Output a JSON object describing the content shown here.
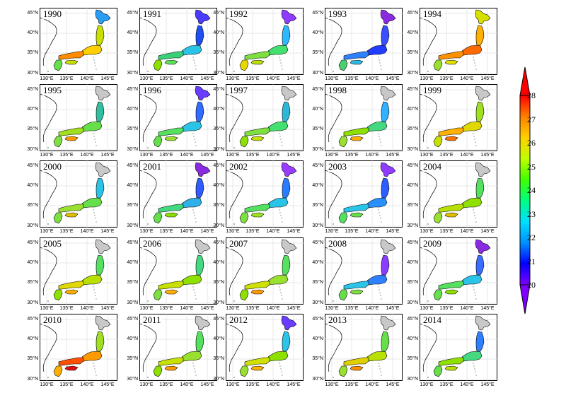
{
  "panels": [
    {
      "year": "1990",
      "colors": [
        "#2a9df4",
        "#c9e000",
        "#ffd000",
        "#ff8c00",
        "#c9e000",
        "#66e04a"
      ]
    },
    {
      "year": "1991",
      "colors": [
        "#4a3cff",
        "#1f4ff2",
        "#29c4e8",
        "#3ad07a",
        "#5fe05a",
        "#8ee000"
      ]
    },
    {
      "year": "1992",
      "colors": [
        "#8f3cff",
        "#2eb8ff",
        "#44e070",
        "#7ee040",
        "#b8e000",
        "#e6d800"
      ]
    },
    {
      "year": "1993",
      "colors": [
        "#8a2be2",
        "#3a50ff",
        "#1f3cff",
        "#2f80ff",
        "#2fb8e0",
        "#4ad070"
      ]
    },
    {
      "year": "1994",
      "colors": [
        "#d8e000",
        "#ffb000",
        "#ff6a00",
        "#ff9000",
        "#e0e000",
        "#9ae030"
      ]
    },
    {
      "year": "1995",
      "colors": [
        "#c8c8c8",
        "#30c0a0",
        "#66e04a",
        "#a0e020",
        "#ff9a00",
        "#7ee040"
      ]
    },
    {
      "year": "1996",
      "colors": [
        "#6a3cff",
        "#2f6cff",
        "#29c4e8",
        "#55e060",
        "#9ae030",
        "#66e04a"
      ]
    },
    {
      "year": "1997",
      "colors": [
        "#c8c8c8",
        "#2eb8d8",
        "#44e070",
        "#7ee040",
        "#c8e000",
        "#8ee000"
      ]
    },
    {
      "year": "1998",
      "colors": [
        "#c8c8c8",
        "#33b0ff",
        "#44d880",
        "#8ee000",
        "#ffb000",
        "#9ae030"
      ]
    },
    {
      "year": "1999",
      "colors": [
        "#c8c8c8",
        "#a0e020",
        "#e0d800",
        "#ffb000",
        "#ff7000",
        "#c8e000"
      ]
    },
    {
      "year": "2000",
      "colors": [
        "#c8c8c8",
        "#29c4e8",
        "#66e04a",
        "#9ae030",
        "#e0c000",
        "#7ee040"
      ]
    },
    {
      "year": "2001",
      "colors": [
        "#8a2be2",
        "#2f5cff",
        "#2fb0e8",
        "#44d880",
        "#8ee000",
        "#66e04a"
      ]
    },
    {
      "year": "2002",
      "colors": [
        "#9a3cff",
        "#2a7cff",
        "#29c4e8",
        "#55e060",
        "#a0e020",
        "#7ee040"
      ]
    },
    {
      "year": "2003",
      "colors": [
        "#8f3cff",
        "#2f5cff",
        "#2a90ff",
        "#29c4e8",
        "#66e04a",
        "#55e060"
      ]
    },
    {
      "year": "2004",
      "colors": [
        "#c8c8c8",
        "#55e060",
        "#8ee000",
        "#b8e000",
        "#e0c000",
        "#9ae030"
      ]
    },
    {
      "year": "2005",
      "colors": [
        "#c8c8c8",
        "#55e060",
        "#b8e000",
        "#e0d800",
        "#ffb000",
        "#8ee000"
      ]
    },
    {
      "year": "2006",
      "colors": [
        "#c8c8c8",
        "#44d880",
        "#8ee000",
        "#c8e000",
        "#ffb000",
        "#7ee040"
      ]
    },
    {
      "year": "2007",
      "colors": [
        "#c8c8c8",
        "#55e060",
        "#9ae030",
        "#d0e000",
        "#ff9a00",
        "#8ee000"
      ]
    },
    {
      "year": "2008",
      "colors": [
        "#c8c8c8",
        "#8a3cff",
        "#2f80ff",
        "#29c4e8",
        "#7ee040",
        "#66e04a"
      ]
    },
    {
      "year": "2009",
      "colors": [
        "#8a2be2",
        "#3a6cff",
        "#29c4e8",
        "#55e060",
        "#8ee000",
        "#66e04a"
      ]
    },
    {
      "year": "2010",
      "colors": [
        "#c8c8c8",
        "#a0e020",
        "#ff9a00",
        "#ff5000",
        "#e01010",
        "#ffb000"
      ]
    },
    {
      "year": "2011",
      "colors": [
        "#c8c8c8",
        "#55e060",
        "#9ae030",
        "#c8e000",
        "#ff9a00",
        "#8ee000"
      ]
    },
    {
      "year": "2012",
      "colors": [
        "#6a3cff",
        "#29c4e8",
        "#8ee000",
        "#d0e000",
        "#ffb000",
        "#9ae030"
      ]
    },
    {
      "year": "2013",
      "colors": [
        "#c8c8c8",
        "#66e04a",
        "#b8e000",
        "#e0d000",
        "#ff9000",
        "#9ae030"
      ]
    },
    {
      "year": "2014",
      "colors": [
        "#c8c8c8",
        "#2f80ff",
        "#44d880",
        "#8ee000",
        "#b8e000",
        "#66e04a"
      ]
    }
  ],
  "axes": {
    "lat_labels": [
      "45°N",
      "40°N",
      "35°N",
      "30°N"
    ],
    "lon_labels": [
      "130°E",
      "135°E",
      "140°E",
      "145°E"
    ]
  },
  "colorbar": {
    "ticks": [
      "28",
      "27",
      "26",
      "25",
      "24",
      "23",
      "22",
      "21",
      "20"
    ],
    "min": 20,
    "max": 28,
    "extend": "both",
    "stops": [
      "#8000ff",
      "#0000ff",
      "#0090ff",
      "#00e0ff",
      "#00ff80",
      "#40ff00",
      "#c0ff00",
      "#ffd000",
      "#ff8000",
      "#ff0000"
    ]
  }
}
